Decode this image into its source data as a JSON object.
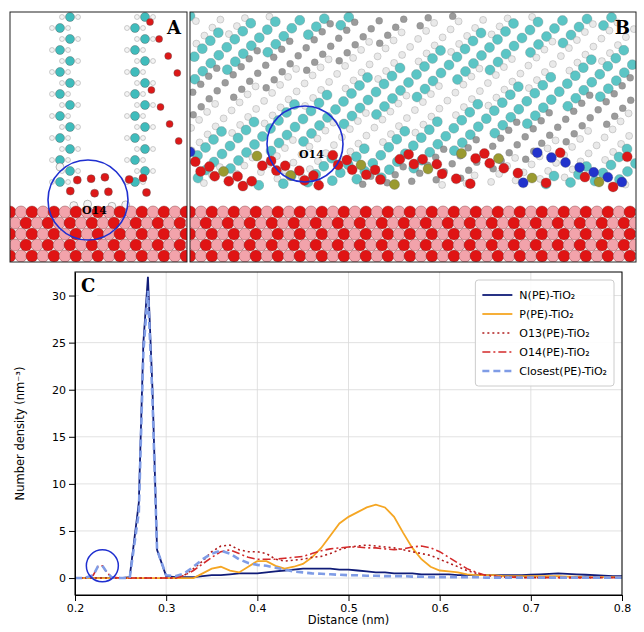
{
  "chart_data": {
    "type": "line",
    "panel_label": "C",
    "images": [
      {
        "label": "A",
        "annotation": "O14"
      },
      {
        "label": "B",
        "annotation": "O14"
      }
    ],
    "x_label": "Distance (nm)",
    "y_label": "Number density (nm⁻³)",
    "x": [
      0.2,
      0.21,
      0.22,
      0.225,
      0.23,
      0.235,
      0.24,
      0.25,
      0.26,
      0.27,
      0.275,
      0.28,
      0.285,
      0.29,
      0.3,
      0.31,
      0.32,
      0.33,
      0.34,
      0.35,
      0.36,
      0.37,
      0.38,
      0.39,
      0.4,
      0.41,
      0.42,
      0.43,
      0.44,
      0.45,
      0.46,
      0.47,
      0.48,
      0.49,
      0.5,
      0.51,
      0.52,
      0.53,
      0.54,
      0.55,
      0.56,
      0.57,
      0.58,
      0.59,
      0.6,
      0.61,
      0.62,
      0.63,
      0.64,
      0.65,
      0.66,
      0.67,
      0.68,
      0.69,
      0.7,
      0.71,
      0.72,
      0.73,
      0.74,
      0.75,
      0.76,
      0.77,
      0.78,
      0.79,
      0.8
    ],
    "series": [
      {
        "name": "N(PE)-TiO₂",
        "color": "#101c78",
        "line_style": "solid",
        "values": [
          0,
          0,
          0,
          0,
          0,
          0,
          0,
          0,
          0.1,
          8,
          25,
          32,
          20,
          3,
          0.2,
          0.1,
          0.1,
          0.1,
          0.2,
          0.3,
          0.3,
          0.4,
          0.5,
          0.5,
          0.5,
          0.6,
          0.7,
          0.8,
          0.9,
          1.0,
          1.0,
          1.0,
          1.0,
          0.9,
          0.9,
          0.8,
          0.7,
          0.6,
          0.6,
          0.5,
          0.5,
          0.5,
          0.4,
          0.4,
          0.4,
          0.4,
          0.3,
          0.3,
          0.3,
          0.3,
          0.3,
          0.3,
          0.3,
          0.3,
          0.35,
          0.4,
          0.45,
          0.5,
          0.45,
          0.4,
          0.35,
          0.3,
          0.25,
          0.2,
          0.2
        ]
      },
      {
        "name": "P(PE)-TiO₂",
        "color": "#f5a623",
        "line_style": "solid",
        "values": [
          0,
          0,
          0,
          0,
          0,
          0,
          0,
          0,
          0,
          0,
          0,
          0,
          0,
          0,
          0,
          0,
          0,
          0,
          0.5,
          1.0,
          1.2,
          0.8,
          0.6,
          1.2,
          1.8,
          1.8,
          1.3,
          1.0,
          1.2,
          1.5,
          2.2,
          3.2,
          4.5,
          5.8,
          6.5,
          7.0,
          7.5,
          7.8,
          7.5,
          6.5,
          4.8,
          3.2,
          2.0,
          1.2,
          0.8,
          0.7,
          0.6,
          0.4,
          0.3,
          0.3,
          0.3,
          0.2,
          0.2,
          0.2,
          0.2,
          0.2,
          0.2,
          0.2,
          0.15,
          0.15,
          0.1,
          0.1,
          0.1,
          0.1,
          0.1
        ]
      },
      {
        "name": "O13(PE)-TiO₂",
        "color": "#b01c1c",
        "line_style": "dotted",
        "values": [
          0,
          0,
          0,
          0,
          0,
          0,
          0,
          0,
          0,
          0,
          0,
          0,
          0,
          0,
          0,
          0,
          0.3,
          1.0,
          1.8,
          2.8,
          3.4,
          3.5,
          3.0,
          2.8,
          2.8,
          2.6,
          2.0,
          1.8,
          1.9,
          2.0,
          2.2,
          2.3,
          2.6,
          3.0,
          3.3,
          3.4,
          3.5,
          3.4,
          3.3,
          3.2,
          3.0,
          2.8,
          2.6,
          2.4,
          2.0,
          1.6,
          1.2,
          0.8,
          0.5,
          0.3,
          0.2,
          0.1,
          0.1,
          0.05,
          0.05,
          0.05,
          0.05,
          0.05,
          0.05,
          0.05,
          0.05,
          0.05,
          0.05,
          0.05,
          0.05
        ]
      },
      {
        "name": "O14(PE)-TiO₂",
        "color": "#d42a2a",
        "line_style": "dashdot",
        "values": [
          0,
          0,
          0.3,
          1.2,
          1.3,
          0.6,
          0.1,
          0,
          0,
          0,
          0,
          0,
          0,
          0,
          0,
          0,
          0.3,
          0.8,
          1.5,
          2.2,
          2.8,
          3.0,
          2.6,
          2.2,
          2.0,
          2.0,
          2.0,
          2.1,
          2.2,
          2.3,
          2.6,
          2.9,
          3.1,
          3.2,
          3.3,
          3.3,
          3.2,
          3.2,
          3.1,
          3.0,
          3.1,
          3.3,
          3.4,
          3.2,
          2.8,
          2.2,
          1.6,
          1.0,
          0.6,
          0.3,
          0.2,
          0.1,
          0.1,
          0.05,
          0.05,
          0.05,
          0.05,
          0.05,
          0.05,
          0.05,
          0.05,
          0.05,
          0.05,
          0.05,
          0.05
        ]
      },
      {
        "name": "Closest(PE)-TiO₂",
        "color": "#7f9ce6",
        "line_style": "dashed",
        "values": [
          0,
          0,
          0.3,
          1.2,
          1.3,
          0.6,
          0.1,
          0,
          0,
          7,
          24,
          30.5,
          19,
          3,
          0.3,
          0.2,
          0.5,
          1.2,
          2.0,
          2.6,
          2.9,
          2.6,
          2.0,
          1.6,
          1.4,
          1.3,
          1.1,
          0.9,
          0.7,
          0.6,
          0.5,
          0.45,
          0.4,
          0.35,
          0.3,
          0.3,
          0.25,
          0.25,
          0.2,
          0.2,
          0.2,
          0.15,
          0.15,
          0.1,
          0.1,
          0.1,
          0.1,
          0.1,
          0.1,
          0.05,
          0.05,
          0.05,
          0.05,
          0.05,
          0.05,
          0.05,
          0.05,
          0.05,
          0.05,
          0.05,
          0.05,
          0.05,
          0.05,
          0.05,
          0.05
        ]
      }
    ],
    "xlim": [
      0.2,
      0.8
    ],
    "xticks": [
      0.2,
      0.3,
      0.4,
      0.5,
      0.6,
      0.7,
      0.8
    ],
    "ylim": [
      -1.8,
      32.5
    ],
    "yticks": [
      0,
      5,
      10,
      15,
      20,
      25,
      30
    ],
    "grid": true,
    "legend": "upper right"
  }
}
